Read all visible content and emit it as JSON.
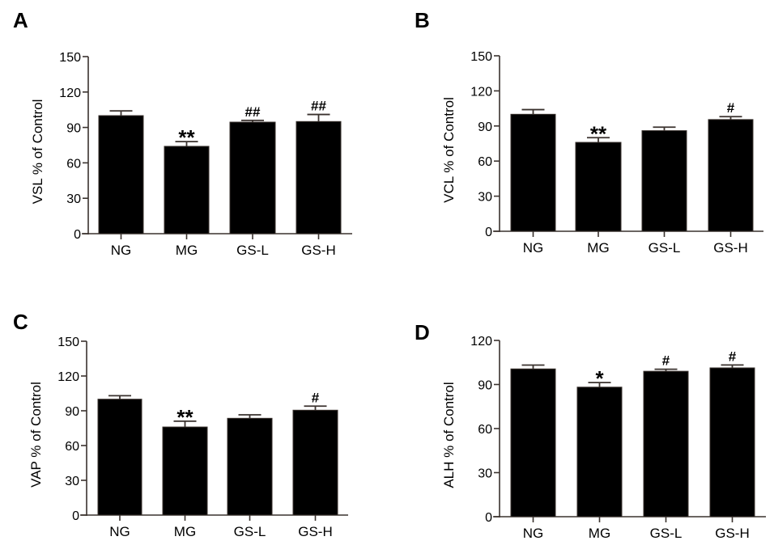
{
  "chart_data": [
    {
      "panel": "A",
      "type": "bar",
      "title": "",
      "xlabel": "",
      "ylabel": "VSL % of Control",
      "categories": [
        "NG",
        "MG",
        "GS-L",
        "GS-H"
      ],
      "values": [
        100,
        74,
        94.5,
        95
      ],
      "error_upper": [
        104,
        78,
        96,
        101
      ],
      "significance": [
        "",
        "**",
        "##",
        "##"
      ],
      "ylim": [
        0,
        150
      ],
      "yticks": [
        0,
        30,
        60,
        90,
        120,
        150
      ],
      "grid": false
    },
    {
      "panel": "B",
      "type": "bar",
      "title": "",
      "xlabel": "",
      "ylabel": "VCL % of Control",
      "categories": [
        "NG",
        "MG",
        "GS-L",
        "GS-H"
      ],
      "values": [
        100,
        76,
        86,
        95.5
      ],
      "error_upper": [
        104,
        80,
        89,
        98
      ],
      "significance": [
        "",
        "**",
        "",
        "#"
      ],
      "ylim": [
        0,
        150
      ],
      "yticks": [
        0,
        30,
        60,
        90,
        120,
        150
      ],
      "grid": false
    },
    {
      "panel": "C",
      "type": "bar",
      "title": "",
      "xlabel": "",
      "ylabel": "VAP % of Control",
      "categories": [
        "NG",
        "MG",
        "GS-L",
        "GS-H"
      ],
      "values": [
        100,
        76,
        83.5,
        90.5
      ],
      "error_upper": [
        103,
        81,
        86.5,
        94
      ],
      "significance": [
        "",
        "**",
        "",
        "#"
      ],
      "ylim": [
        0,
        150
      ],
      "yticks": [
        0,
        30,
        60,
        90,
        120,
        150
      ],
      "grid": false
    },
    {
      "panel": "D",
      "type": "bar",
      "title": "",
      "xlabel": "",
      "ylabel": "ALH % of Control",
      "categories": [
        "NG",
        "MG",
        "GS-L",
        "GS-H"
      ],
      "values": [
        100.6,
        88.2,
        99,
        101.3
      ],
      "error_upper": [
        103.2,
        91.3,
        100.4,
        103.3
      ],
      "significance": [
        "",
        "*",
        "#",
        "#"
      ],
      "ylim": [
        0,
        120
      ],
      "yticks": [
        0,
        30,
        60,
        90,
        120
      ],
      "grid": false
    }
  ],
  "colors": {
    "bar": "#000000",
    "axis": "#3a322e"
  }
}
